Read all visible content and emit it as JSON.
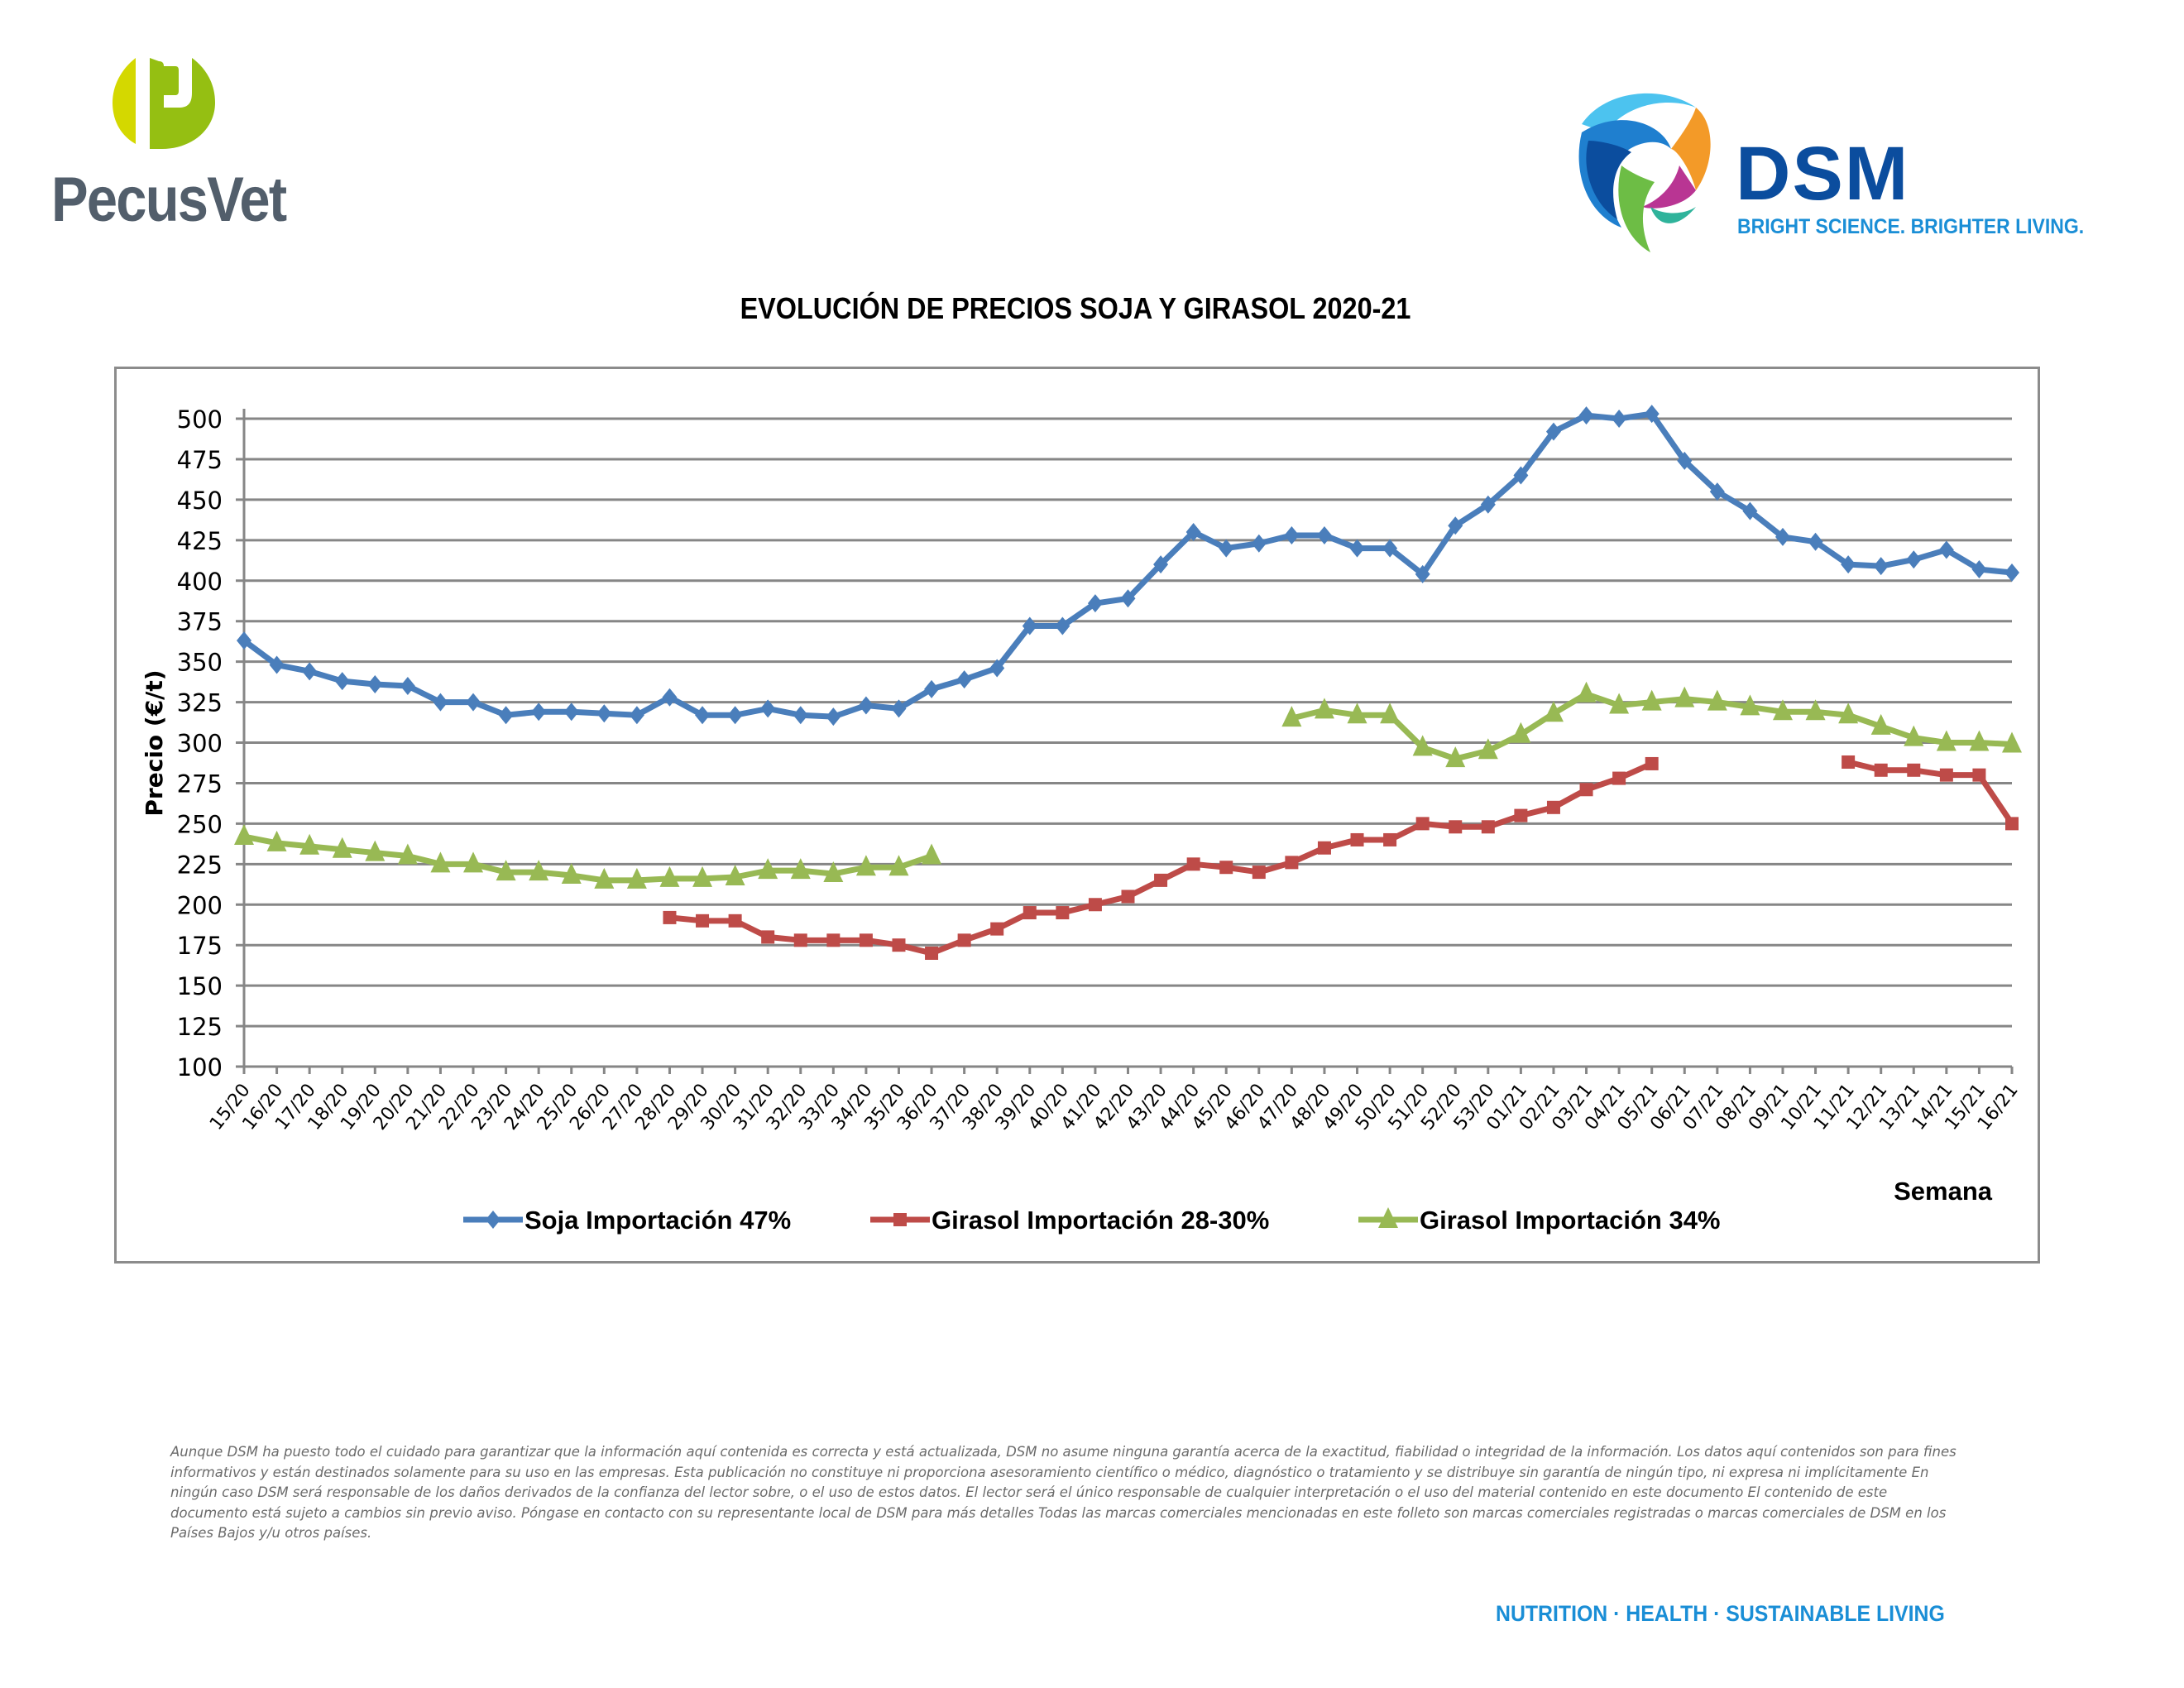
{
  "header": {
    "left_logo_name": "PecusVet",
    "right_logo_name": "DSM",
    "right_logo_tagline": "BRIGHT SCIENCE. BRIGHTER LIVING."
  },
  "colors": {
    "soja": "#4a7ebb",
    "girasol_28_30": "#be4b48",
    "girasol_34": "#98b954",
    "grid": "#868686",
    "pecus_green_light": "#d4d800",
    "pecus_green": "#95bf12",
    "pecus_text": "#525e6b",
    "dsm_blue": "#0b4d9e",
    "dsm_light_blue": "#1a8ed6"
  },
  "chart_data": {
    "type": "line",
    "title": "EVOLUCIÓN DE PRECIOS SOJA Y GIRASOL 2020-21",
    "xlabel": "Semana",
    "ylabel": "Precio (€/t)",
    "ylim": [
      100,
      500
    ],
    "yticks": [
      100,
      125,
      150,
      175,
      200,
      225,
      250,
      275,
      300,
      325,
      350,
      375,
      400,
      425,
      450,
      475,
      500
    ],
    "grid": true,
    "legend_position": "bottom",
    "categories": [
      "15/20",
      "16/20",
      "17/20",
      "18/20",
      "19/20",
      "20/20",
      "21/20",
      "22/20",
      "23/20",
      "24/20",
      "25/20",
      "26/20",
      "27/20",
      "28/20",
      "29/20",
      "30/20",
      "31/20",
      "32/20",
      "33/20",
      "34/20",
      "35/20",
      "36/20",
      "37/20",
      "38/20",
      "39/20",
      "40/20",
      "41/20",
      "42/20",
      "43/20",
      "44/20",
      "45/20",
      "46/20",
      "47/20",
      "48/20",
      "49/20",
      "50/20",
      "51/20",
      "52/20",
      "53/20",
      "01/21",
      "02/21",
      "03/21",
      "04/21",
      "05/21",
      "06/21",
      "07/21",
      "08/21",
      "09/21",
      "10/21",
      "11/21",
      "12/21",
      "13/21",
      "14/21",
      "15/21",
      "16/21"
    ],
    "series": [
      {
        "name": "Soja Importación 47%",
        "marker": "diamond",
        "color_key": "soja",
        "values": [
          363,
          348,
          344,
          338,
          336,
          335,
          325,
          325,
          317,
          319,
          319,
          318,
          317,
          328,
          317,
          317,
          321,
          317,
          316,
          323,
          321,
          333,
          339,
          346,
          372,
          372,
          386,
          389,
          410,
          430,
          420,
          423,
          428,
          428,
          420,
          420,
          404,
          434,
          447,
          465,
          492,
          502,
          500,
          503,
          474,
          455,
          443,
          427,
          424,
          410,
          409,
          413,
          419,
          407,
          405
        ]
      },
      {
        "name": "Girasol Importación 28-30%",
        "marker": "square",
        "color_key": "girasol_28_30",
        "values": [
          null,
          null,
          null,
          null,
          null,
          null,
          null,
          null,
          null,
          null,
          null,
          null,
          null,
          192,
          190,
          190,
          180,
          178,
          178,
          178,
          175,
          170,
          178,
          185,
          195,
          195,
          200,
          205,
          215,
          225,
          223,
          220,
          226,
          235,
          240,
          240,
          250,
          248,
          248,
          255,
          260,
          271,
          278,
          287,
          null,
          null,
          null,
          null,
          null,
          288,
          283,
          283,
          280,
          280,
          250
        ]
      },
      {
        "name": "Girasol Importación 34%",
        "marker": "triangle",
        "color_key": "girasol_34",
        "values": [
          242,
          238,
          236,
          234,
          232,
          230,
          225,
          225,
          220,
          220,
          218,
          215,
          215,
          216,
          216,
          217,
          221,
          221,
          219,
          223,
          223,
          230,
          null,
          null,
          null,
          null,
          null,
          null,
          null,
          null,
          null,
          null,
          315,
          320,
          317,
          317,
          297,
          290,
          295,
          305,
          318,
          330,
          323,
          325,
          327,
          325,
          322,
          319,
          319,
          317,
          310,
          303,
          300,
          300,
          299
        ]
      }
    ]
  },
  "disclaimer": "Aunque DSM ha puesto todo el cuidado para garantizar que la información aquí contenida es correcta y está actualizada, DSM no asume ninguna garantía acerca de la exactitud, fiabilidad o integridad de la información. Los datos aquí contenidos son para fines informativos y están destinados solamente para su uso en las empresas. Esta publicación no constituye ni proporciona asesoramiento científico o médico, diagnóstico o tratamiento y se distribuye sin garantía de ningún tipo, ni expresa ni implícitamente En ningún caso DSM será responsable de los daños derivados de la confianza del lector sobre, o el uso de estos datos. El lector será el único responsable de cualquier interpretación o el uso del material contenido en este documento El contenido de este documento está sujeto a cambios sin previo aviso. Póngase en contacto con su representante local de DSM para más detalles Todas las marcas comerciales mencionadas en este folleto son marcas comerciales registradas o marcas comerciales de DSM en los Países Bajos y/u otros países.",
  "footer_tagline": "NUTRITION  ·  HEALTH  ·  SUSTAINABLE LIVING"
}
